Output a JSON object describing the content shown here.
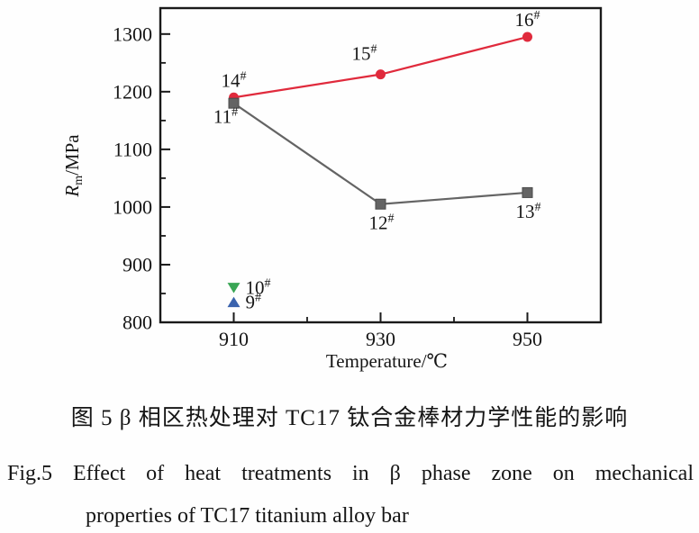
{
  "figure": {
    "caption_zh": "图 5  β 相区热处理对 TC17 钛合金棒材力学性能的影响",
    "caption_en_line1": "Fig.5  Effect of heat treatments in β phase zone on mechanical",
    "caption_en_line2": "properties of TC17 titanium alloy bar"
  },
  "chart_data": {
    "type": "line",
    "title": "",
    "xlabel": "Temperature/℃",
    "ylabel_parts": {
      "pre": "R",
      "sub": "m",
      "post": "/MPa"
    },
    "xlim": [
      900,
      960
    ],
    "ylim": [
      800,
      1345
    ],
    "xticks": [
      910,
      930,
      950
    ],
    "xminorticks": [
      920,
      940
    ],
    "yticks": [
      800,
      900,
      1000,
      1100,
      1200,
      1300
    ],
    "yminorticks": [
      850,
      950,
      1050,
      1150,
      1250
    ],
    "grid": false,
    "legend": "none (points labeled inline)",
    "frame_color": "#1a1a1a",
    "text_color": "#151515",
    "series": [
      {
        "name": "heat-treatment-samples-14-16",
        "color": "#e02a3c",
        "marker": "circle",
        "line": true,
        "points": [
          {
            "x": 910,
            "y": 1190,
            "label": "14#",
            "label_pos": "above"
          },
          {
            "x": 930,
            "y": 1230,
            "label": "15#",
            "label_pos": "above-left"
          },
          {
            "x": 950,
            "y": 1295,
            "label": "16#",
            "label_pos": "above"
          }
        ]
      },
      {
        "name": "heat-treatment-samples-11-13",
        "color": "#646464",
        "marker": "square",
        "line": true,
        "points": [
          {
            "x": 910,
            "y": 1180,
            "label": "11#",
            "label_pos": "below-left"
          },
          {
            "x": 930,
            "y": 1005,
            "label": "12#",
            "label_pos": "below"
          },
          {
            "x": 950,
            "y": 1025,
            "label": "13#",
            "label_pos": "below"
          }
        ]
      },
      {
        "name": "heat-treatment-sample-10",
        "color": "#3aa655",
        "marker": "triangle-down",
        "line": false,
        "points": [
          {
            "x": 910,
            "y": 860,
            "label": "10#",
            "label_pos": "right"
          }
        ]
      },
      {
        "name": "heat-treatment-sample-9",
        "color": "#3b63ad",
        "marker": "triangle-up",
        "line": false,
        "points": [
          {
            "x": 910,
            "y": 835,
            "label": "9#",
            "label_pos": "right"
          }
        ]
      }
    ]
  }
}
